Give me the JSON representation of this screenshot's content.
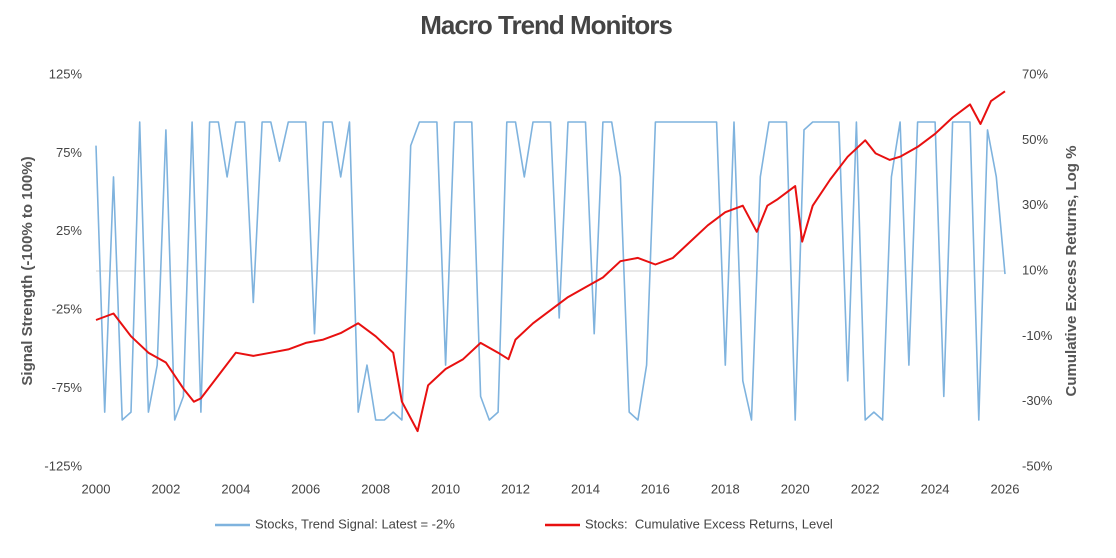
{
  "chart_data": {
    "type": "line",
    "title": "Macro Trend Monitors",
    "y_label": "Signal Strength (-100% to 100%)",
    "y2_label": "Cumulative Excess Returns, Log %",
    "xlim": [
      2000,
      2026
    ],
    "xticks": [
      2000,
      2002,
      2004,
      2006,
      2008,
      2010,
      2012,
      2014,
      2016,
      2018,
      2020,
      2022,
      2024,
      2026
    ],
    "ylim": [
      -125,
      125
    ],
    "yticks": [
      {
        "value": -125,
        "label": "-125%"
      },
      {
        "value": -75,
        "label": "-75%"
      },
      {
        "value": -25,
        "label": "-25%"
      },
      {
        "value": 25,
        "label": "25%"
      },
      {
        "value": 75,
        "label": "75%"
      },
      {
        "value": 125,
        "label": "125%"
      }
    ],
    "y2lim": [
      -50,
      70
    ],
    "y2ticks": [
      {
        "value": -50,
        "label": "-50%"
      },
      {
        "value": -30,
        "label": "-30%"
      },
      {
        "value": -10,
        "label": "-10%"
      },
      {
        "value": 10,
        "label": "10%"
      },
      {
        "value": 30,
        "label": "30%"
      },
      {
        "value": 50,
        "label": "50%"
      },
      {
        "value": 70,
        "label": "70%"
      }
    ],
    "series": [
      {
        "name": "Stocks, Trend Signal: Latest = -2%",
        "color": "#7fb3de",
        "x": [
          2000,
          2000.25,
          2000.5,
          2000.75,
          2001,
          2001.25,
          2001.5,
          2001.75,
          2002,
          2002.25,
          2002.5,
          2002.75,
          2003,
          2003.25,
          2003.5,
          2003.75,
          2004,
          2004.25,
          2004.5,
          2004.75,
          2005,
          2005.25,
          2005.5,
          2005.75,
          2006,
          2006.25,
          2006.5,
          2006.75,
          2007,
          2007.25,
          2007.5,
          2007.75,
          2008,
          2008.25,
          2008.5,
          2008.75,
          2009,
          2009.25,
          2009.5,
          2009.75,
          2010,
          2010.25,
          2010.5,
          2010.75,
          2011,
          2011.25,
          2011.5,
          2011.75,
          2012,
          2012.25,
          2012.5,
          2012.75,
          2013,
          2013.25,
          2013.5,
          2013.75,
          2014,
          2014.25,
          2014.5,
          2014.75,
          2015,
          2015.25,
          2015.5,
          2015.75,
          2016,
          2016.25,
          2016.5,
          2016.75,
          2017,
          2017.25,
          2017.5,
          2017.75,
          2018,
          2018.25,
          2018.5,
          2018.75,
          2019,
          2019.25,
          2019.5,
          2019.75,
          2020,
          2020.25,
          2020.5,
          2020.75,
          2021,
          2021.25,
          2021.5,
          2021.75,
          2022,
          2022.25,
          2022.5,
          2022.75,
          2023,
          2023.25,
          2023.5,
          2023.75,
          2024,
          2024.25,
          2024.5,
          2024.75,
          2025,
          2025.25,
          2025.5,
          2025.75,
          2026
        ],
        "values": [
          80,
          -90,
          60,
          -95,
          -90,
          95,
          -90,
          -60,
          90,
          -95,
          -80,
          95,
          -90,
          95,
          95,
          60,
          95,
          95,
          -20,
          95,
          95,
          70,
          95,
          95,
          95,
          -40,
          95,
          95,
          60,
          95,
          -90,
          -60,
          -95,
          -95,
          -90,
          -95,
          80,
          95,
          95,
          95,
          -60,
          95,
          95,
          95,
          -80,
          -95,
          -90,
          95,
          95,
          60,
          95,
          95,
          95,
          -30,
          95,
          95,
          95,
          -40,
          95,
          95,
          60,
          -90,
          -95,
          -60,
          95,
          95,
          95,
          95,
          95,
          95,
          95,
          95,
          -60,
          95,
          -70,
          -95,
          60,
          95,
          95,
          95,
          -95,
          90,
          95,
          95,
          95,
          95,
          -70,
          95,
          -95,
          -90,
          -95,
          60,
          95,
          -60,
          95,
          95,
          95,
          -80,
          95,
          95,
          95,
          -95,
          90,
          60,
          -2
        ]
      },
      {
        "name": "Stocks:  Cumulative Excess Returns, Level",
        "color": "#e81010",
        "axis": "y2",
        "x": [
          2000,
          2000.5,
          2001,
          2001.5,
          2002,
          2002.5,
          2002.8,
          2003,
          2003.5,
          2004,
          2004.5,
          2005,
          2005.5,
          2006,
          2006.5,
          2007,
          2007.5,
          2008,
          2008.5,
          2008.75,
          2009.2,
          2009.5,
          2010,
          2010.5,
          2011,
          2011.5,
          2011.8,
          2012,
          2012.5,
          2013,
          2013.5,
          2014,
          2014.5,
          2015,
          2015.5,
          2016,
          2016.5,
          2017,
          2017.5,
          2018,
          2018.5,
          2018.9,
          2019.2,
          2019.5,
          2020,
          2020.2,
          2020.5,
          2021,
          2021.5,
          2022,
          2022.3,
          2022.7,
          2023,
          2023.5,
          2024,
          2024.5,
          2025,
          2025.3,
          2025.6,
          2026
        ],
        "values": [
          -5,
          -3,
          -10,
          -15,
          -18,
          -26,
          -30,
          -29,
          -22,
          -15,
          -16,
          -15,
          -14,
          -12,
          -11,
          -9,
          -6,
          -10,
          -15,
          -30,
          -39,
          -25,
          -20,
          -17,
          -12,
          -15,
          -17,
          -11,
          -6,
          -2,
          2,
          5,
          8,
          13,
          14,
          12,
          14,
          19,
          24,
          28,
          30,
          22,
          30,
          32,
          36,
          19,
          30,
          38,
          45,
          50,
          46,
          44,
          45,
          48,
          52,
          57,
          61,
          55,
          62,
          65
        ]
      }
    ]
  }
}
